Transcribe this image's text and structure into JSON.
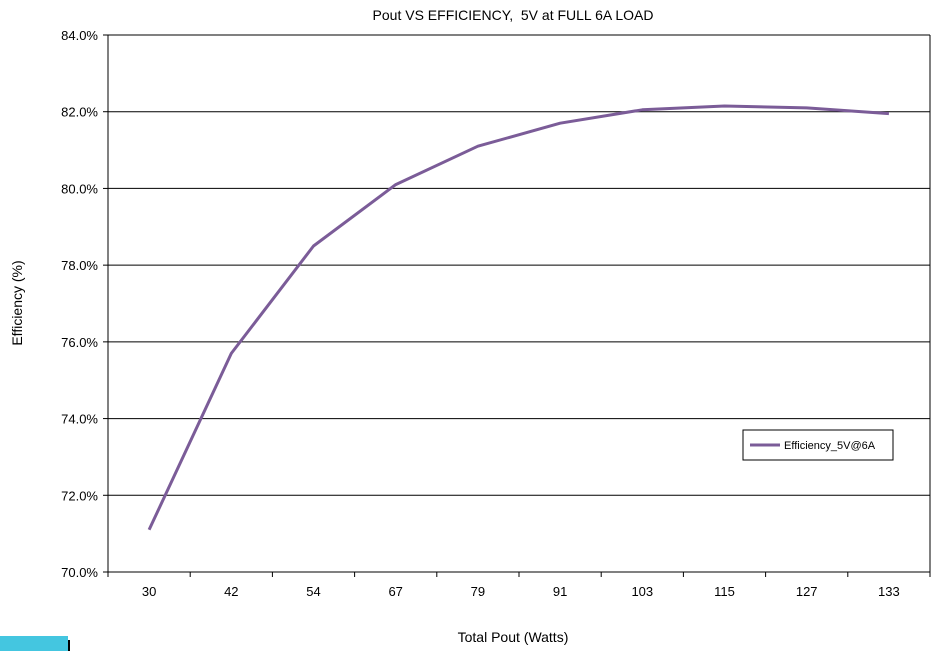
{
  "chart_data": {
    "type": "line",
    "title": "Pout VS EFFICIENCY,  5V at FULL 6A LOAD",
    "xlabel": "Total Pout (Watts)",
    "ylabel": "Efficiency (%)",
    "categories": [
      "30",
      "42",
      "54",
      "67",
      "79",
      "91",
      "103",
      "115",
      "127",
      "133"
    ],
    "y_ticks": [
      "70.0%",
      "72.0%",
      "74.0%",
      "76.0%",
      "78.0%",
      "80.0%",
      "82.0%",
      "84.0%"
    ],
    "ylim": [
      70.0,
      84.0
    ],
    "grid": "horizontal",
    "legend_position": "right",
    "series": [
      {
        "name": "Efficiency_5V@6A",
        "color": "#7b5c98",
        "values": [
          71.1,
          75.7,
          78.5,
          80.1,
          81.1,
          81.7,
          82.05,
          82.15,
          82.1,
          81.95
        ]
      }
    ]
  },
  "decoration": {
    "corner_swatch_color": "#44c6e0"
  }
}
